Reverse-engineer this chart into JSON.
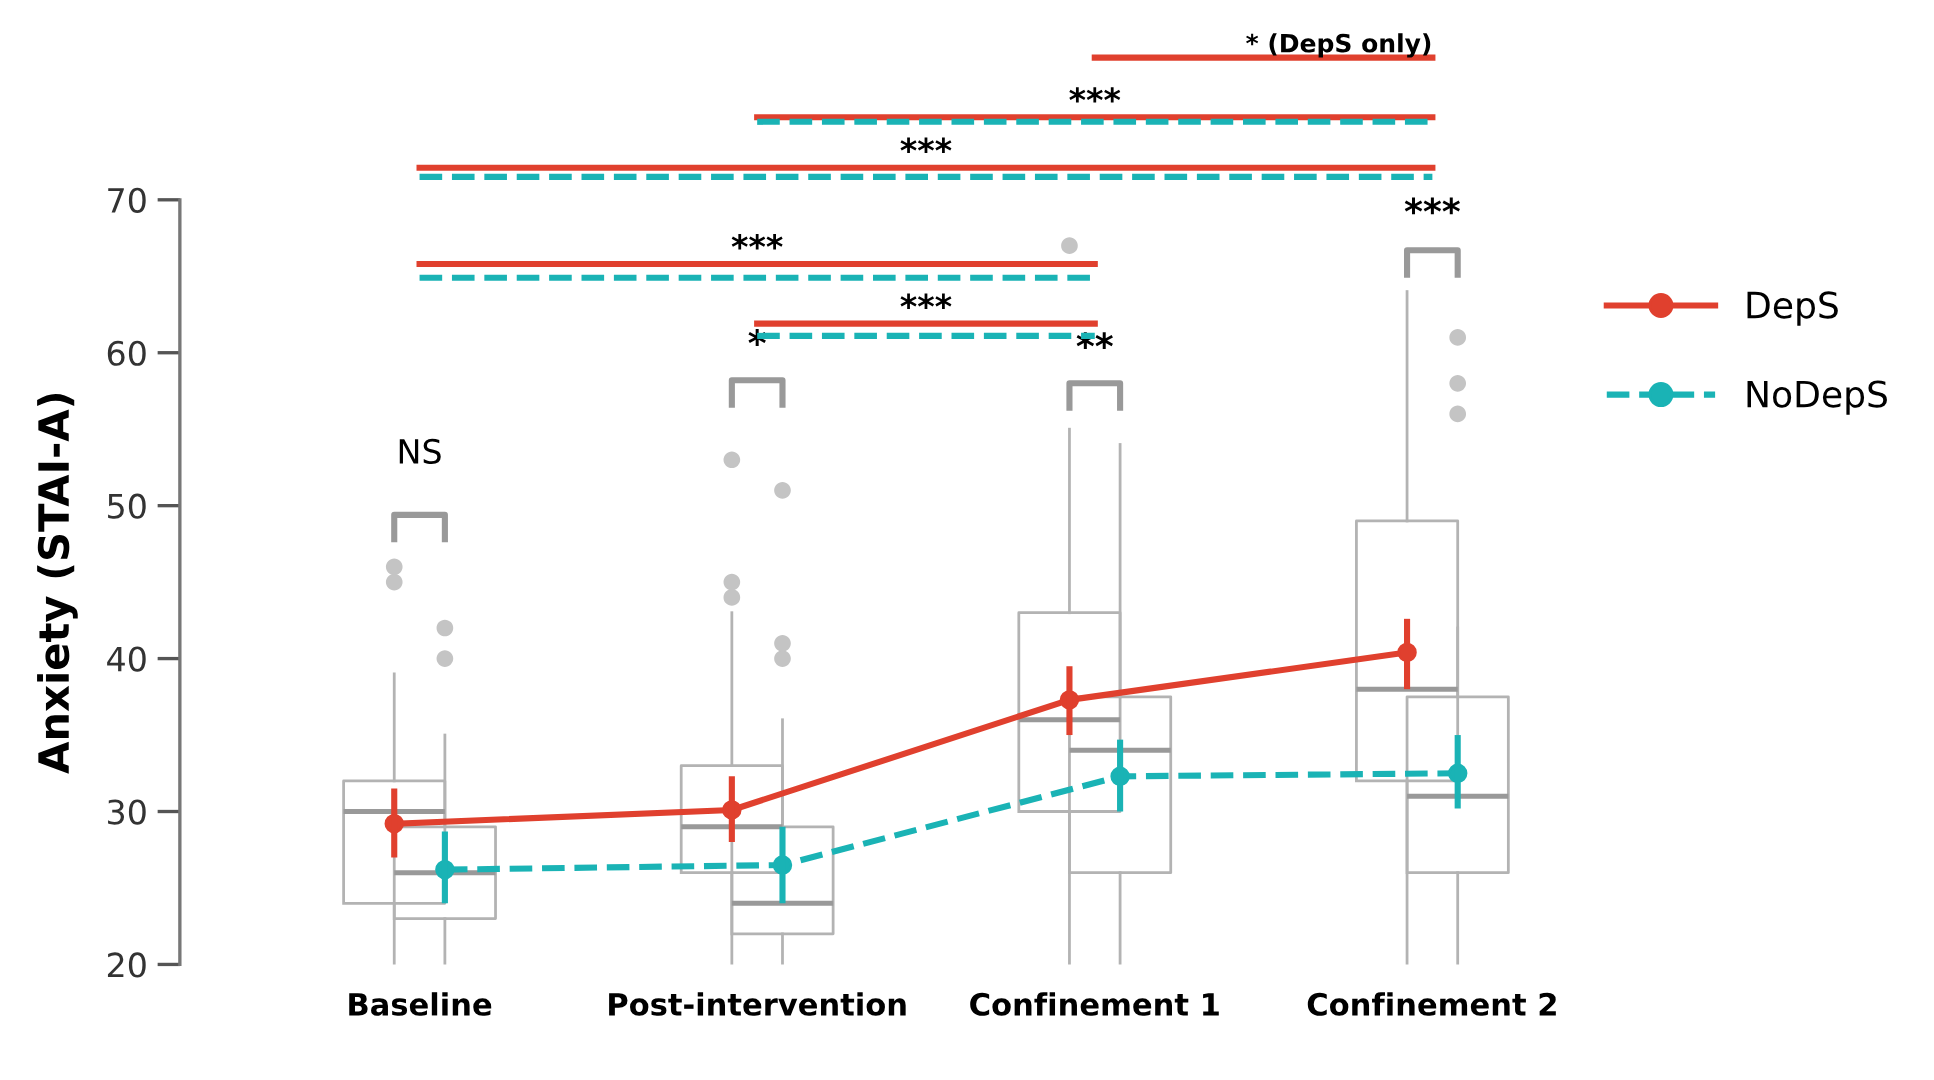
{
  "chart_data": {
    "type": "box",
    "ylabel": "Anxiety (STAI-A)",
    "categories": [
      "Baseline",
      "Post-intervention",
      "Confinement 1",
      "Confinement 2"
    ],
    "ylim": [
      20,
      70
    ],
    "yticks": [
      20,
      30,
      40,
      50,
      60,
      70
    ],
    "grid": false,
    "legend": "right",
    "series": [
      {
        "color": "#b3b3b3",
        "boxes": [
          {
            "low": 20,
            "q1": 24,
            "median": 30,
            "q3": 32,
            "high": 39,
            "outliers": [
              45,
              46
            ]
          },
          {
            "low": 20,
            "q1": 26,
            "median": 29,
            "q3": 33,
            "high": 43,
            "outliers": [
              44,
              45,
              53
            ]
          },
          {
            "low": 20,
            "q1": 30,
            "median": 36,
            "q3": 43,
            "high": 55,
            "outliers": [
              67
            ]
          },
          {
            "low": 20,
            "q1": 32,
            "median": 38,
            "q3": 49,
            "high": 64
          }
        ]
      },
      {
        "color": "#b3b3b3",
        "boxes": [
          {
            "low": 20,
            "q1": 23,
            "median": 26,
            "q3": 29,
            "high": 35,
            "outliers": [
              40,
              42
            ]
          },
          {
            "low": 20,
            "q1": 22,
            "median": 24,
            "q3": 29,
            "high": 36,
            "outliers": [
              40,
              41,
              51
            ]
          },
          {
            "low": 20,
            "q1": 26,
            "median": 34,
            "q3": 37.5,
            "high": 54
          },
          {
            "low": 20,
            "q1": 26,
            "median": 31,
            "q3": 37.5,
            "high": 42,
            "outliers": [
              56,
              58,
              61
            ]
          }
        ]
      },
      {
        "type": "line",
        "name": "DepS",
        "color": "#e0402e",
        "marker": "circle",
        "line_style": "solid",
        "values": [
          29.2,
          30.1,
          37.3,
          40.4
        ],
        "errors": [
          [
            27,
            31.5
          ],
          [
            28,
            32.3
          ],
          [
            35,
            39.5
          ],
          [
            38,
            42.6
          ]
        ]
      },
      {
        "type": "line",
        "name": "NoDepS",
        "color": "#1ab3b5",
        "marker": "circle",
        "line_style": "dashed",
        "values": [
          26.2,
          26.5,
          32.3,
          32.5
        ],
        "errors": [
          [
            24,
            28.7
          ],
          [
            24,
            29
          ],
          [
            30,
            34.7
          ],
          [
            30.2,
            35
          ]
        ]
      }
    ],
    "annotations": [
      "NS",
      "*",
      "**",
      "***",
      "***",
      "***",
      "***",
      "***",
      "* (DepS only)"
    ]
  }
}
